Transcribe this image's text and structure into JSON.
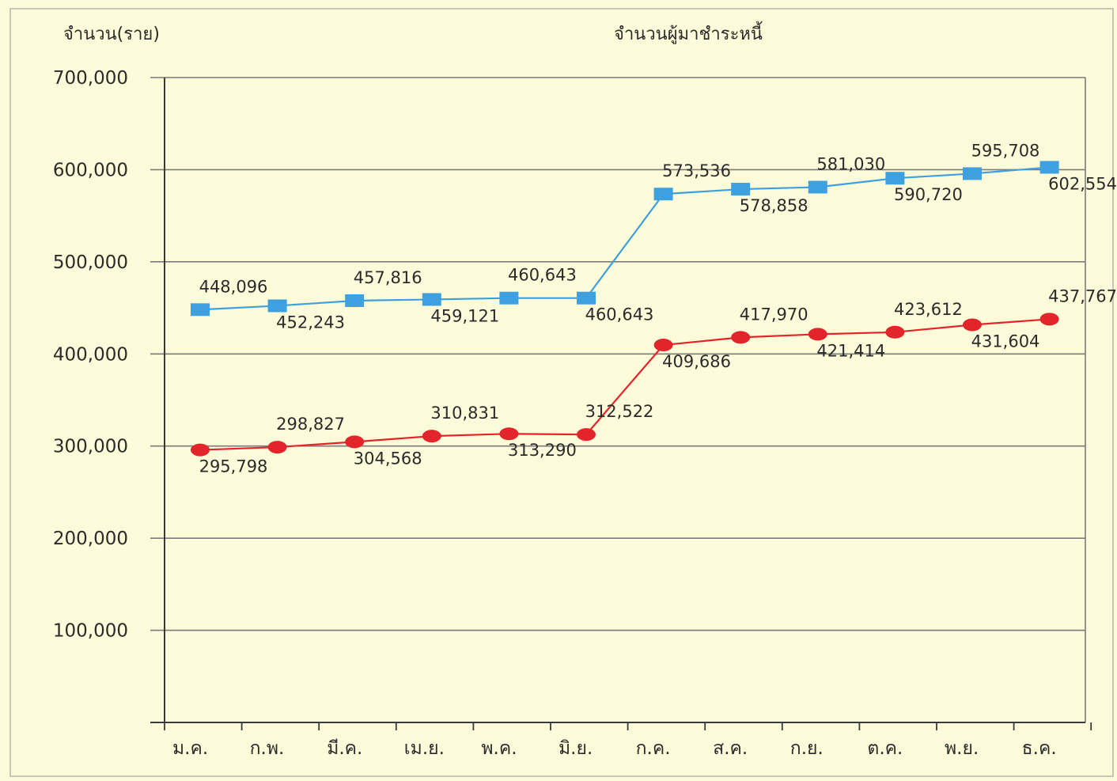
{
  "chart_data": {
    "type": "line",
    "title": "จำนวนผู้มาชำระหนี้",
    "ylabel": "จำนวน(ราย)",
    "xlabel": "",
    "ylim": [
      0,
      700000
    ],
    "yticks": [
      100000,
      200000,
      300000,
      400000,
      500000,
      600000,
      700000
    ],
    "ytick_labels": [
      "100,000",
      "200,000",
      "300,000",
      "400,000",
      "500,000",
      "600,000",
      "700,000"
    ],
    "grid": true,
    "categories": [
      "ม.ค.",
      "ก.พ.",
      "มี.ค.",
      "เม.ย.",
      "พ.ค.",
      "มิ.ย.",
      "ก.ค.",
      "ส.ค.",
      "ก.ย.",
      "ต.ค.",
      "พ.ย.",
      "ธ.ค."
    ],
    "series": [
      {
        "color": "#3fa0e0",
        "marker": "square",
        "values": [
          448096,
          452243,
          457816,
          459121,
          460643,
          460643,
          573536,
          578858,
          581030,
          590720,
          595708,
          602554
        ],
        "value_labels": [
          "448,096",
          "452,243",
          "457,816",
          "459,121",
          "460,643",
          "460,643",
          "573,536",
          "578,858",
          "581,030",
          "590,720",
          "595,708",
          "602,554"
        ],
        "label_pos": [
          "above",
          "below",
          "above",
          "below",
          "above",
          "below",
          "above",
          "below",
          "above",
          "below",
          "above",
          "below"
        ]
      },
      {
        "color": "#e3242b",
        "marker": "circle",
        "values": [
          295798,
          298827,
          304568,
          310831,
          313290,
          312522,
          409686,
          417970,
          421414,
          423612,
          431604,
          437767
        ],
        "value_labels": [
          "295,798",
          "298,827",
          "304,568",
          "310,831",
          "313,290",
          "312,522",
          "409,686",
          "417,970",
          "421,414",
          "423,612",
          "431,604",
          "437,767"
        ],
        "label_pos": [
          "below",
          "above",
          "below",
          "above",
          "below",
          "above",
          "below",
          "above",
          "below",
          "above",
          "below",
          "above"
        ]
      }
    ]
  }
}
